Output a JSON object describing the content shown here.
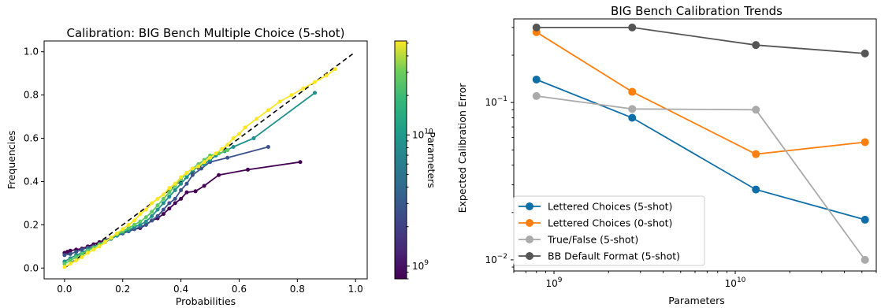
{
  "chart_data": [
    {
      "type": "line",
      "title": "Calibration: BIG Bench Multiple Choice (5-shot)",
      "xlabel": "Probabilities",
      "ylabel": "Frequencies",
      "xlim": [
        -0.07,
        1.04
      ],
      "ylim": [
        -0.05,
        1.05
      ],
      "xticks": [
        "0.0",
        "0.2",
        "0.4",
        "0.6",
        "0.8",
        "1.0"
      ],
      "yticks": [
        "0.0",
        "0.2",
        "0.4",
        "0.6",
        "0.8",
        "1.0"
      ],
      "reference_line": "y = x (dashed black)",
      "colorbar": {
        "label": "Parameters",
        "colormap": "viridis",
        "scale": "log",
        "range": [
          800000000.0,
          52000000000.0
        ],
        "tick_labels": [
          "10^9",
          "10^10"
        ]
      },
      "series": [
        {
          "color": "#440154",
          "x": [
            0.0,
            0.01,
            0.02,
            0.04,
            0.06,
            0.08,
            0.1,
            0.12,
            0.14,
            0.16,
            0.18,
            0.2,
            0.22,
            0.24,
            0.26,
            0.28,
            0.3,
            0.32,
            0.34,
            0.36,
            0.38,
            0.4,
            0.42,
            0.45,
            0.48,
            0.53,
            0.63,
            0.81
          ],
          "y": [
            0.07,
            0.075,
            0.08,
            0.085,
            0.09,
            0.1,
            0.11,
            0.12,
            0.13,
            0.14,
            0.15,
            0.165,
            0.17,
            0.18,
            0.185,
            0.2,
            0.22,
            0.23,
            0.25,
            0.275,
            0.3,
            0.32,
            0.35,
            0.355,
            0.38,
            0.43,
            0.455,
            0.49
          ]
        },
        {
          "color": "#3b528b",
          "x": [
            0.0,
            0.02,
            0.04,
            0.06,
            0.08,
            0.1,
            0.12,
            0.14,
            0.16,
            0.18,
            0.2,
            0.22,
            0.24,
            0.26,
            0.28,
            0.3,
            0.32,
            0.34,
            0.36,
            0.38,
            0.4,
            0.42,
            0.44,
            0.47,
            0.5,
            0.56,
            0.7
          ],
          "y": [
            0.06,
            0.065,
            0.075,
            0.085,
            0.095,
            0.1,
            0.11,
            0.125,
            0.14,
            0.15,
            0.16,
            0.17,
            0.18,
            0.19,
            0.2,
            0.22,
            0.24,
            0.27,
            0.3,
            0.32,
            0.36,
            0.39,
            0.43,
            0.46,
            0.49,
            0.51,
            0.56
          ]
        },
        {
          "color": "#21918c",
          "x": [
            0.0,
            0.02,
            0.04,
            0.06,
            0.08,
            0.1,
            0.12,
            0.14,
            0.16,
            0.18,
            0.2,
            0.22,
            0.24,
            0.26,
            0.28,
            0.3,
            0.32,
            0.34,
            0.36,
            0.38,
            0.4,
            0.42,
            0.44,
            0.46,
            0.48,
            0.5,
            0.52,
            0.55,
            0.58,
            0.65,
            0.86
          ],
          "y": [
            0.03,
            0.045,
            0.06,
            0.07,
            0.085,
            0.095,
            0.11,
            0.12,
            0.135,
            0.15,
            0.165,
            0.175,
            0.19,
            0.2,
            0.215,
            0.24,
            0.27,
            0.3,
            0.33,
            0.36,
            0.39,
            0.42,
            0.45,
            0.47,
            0.48,
            0.5,
            0.52,
            0.54,
            0.56,
            0.6,
            0.81
          ]
        },
        {
          "color": "#5ec962",
          "x": [
            0.0,
            0.02,
            0.04,
            0.06,
            0.08,
            0.1,
            0.12,
            0.14,
            0.16,
            0.18,
            0.2,
            0.22,
            0.24,
            0.26,
            0.28,
            0.3,
            0.32,
            0.34,
            0.36,
            0.38,
            0.4,
            0.42,
            0.44,
            0.46,
            0.48,
            0.5,
            0.53,
            0.56
          ],
          "y": [
            0.02,
            0.035,
            0.05,
            0.065,
            0.08,
            0.095,
            0.11,
            0.125,
            0.14,
            0.155,
            0.17,
            0.185,
            0.2,
            0.215,
            0.235,
            0.26,
            0.29,
            0.32,
            0.35,
            0.38,
            0.41,
            0.44,
            0.46,
            0.48,
            0.5,
            0.52,
            0.53,
            0.545
          ]
        },
        {
          "color": "#fde725",
          "x": [
            0.0,
            0.02,
            0.04,
            0.06,
            0.08,
            0.1,
            0.12,
            0.14,
            0.16,
            0.18,
            0.2,
            0.22,
            0.24,
            0.26,
            0.28,
            0.3,
            0.32,
            0.34,
            0.36,
            0.38,
            0.4,
            0.42,
            0.44,
            0.46,
            0.48,
            0.5,
            0.52,
            0.54,
            0.56,
            0.58,
            0.6,
            0.62,
            0.66,
            0.7,
            0.74,
            0.78,
            0.82,
            0.86,
            0.9,
            0.93
          ],
          "y": [
            0.005,
            0.02,
            0.035,
            0.05,
            0.07,
            0.085,
            0.1,
            0.12,
            0.14,
            0.16,
            0.18,
            0.2,
            0.22,
            0.25,
            0.27,
            0.3,
            0.32,
            0.34,
            0.37,
            0.39,
            0.42,
            0.44,
            0.46,
            0.47,
            0.49,
            0.51,
            0.53,
            0.55,
            0.57,
            0.6,
            0.62,
            0.65,
            0.69,
            0.73,
            0.77,
            0.8,
            0.83,
            0.86,
            0.89,
            0.92
          ]
        }
      ]
    },
    {
      "type": "line",
      "title": "BIG Bench Calibration Trends",
      "xlabel": "Parameters",
      "ylabel": "Expected Calibration Error",
      "xscale": "log",
      "yscale": "log",
      "xlim": [
        600000000.0,
        60000000000.0
      ],
      "ylim": [
        0.0085,
        0.34
      ],
      "xticks": [
        "10^9",
        "10^10"
      ],
      "yticks": [
        "10^-2",
        "10^-1"
      ],
      "legend_position": "lower left",
      "x": [
        800000000.0,
        2700000000.0,
        13000000000.0,
        52000000000.0
      ],
      "series": [
        {
          "name": "Lettered Choices (5-shot)",
          "color": "#0e6ea8",
          "values": [
            0.14,
            0.08,
            0.028,
            0.018
          ]
        },
        {
          "name": "Lettered Choices (0-shot)",
          "color": "#ff7f0e",
          "values": [
            0.28,
            0.117,
            0.047,
            0.056
          ]
        },
        {
          "name": "True/False (5-shot)",
          "color": "#aaaaaa",
          "values": [
            0.11,
            0.091,
            0.09,
            0.01
          ]
        },
        {
          "name": "BB Default Format (5-shot)",
          "color": "#555555",
          "values": [
            0.3,
            0.3,
            0.232,
            0.205
          ]
        }
      ]
    }
  ]
}
